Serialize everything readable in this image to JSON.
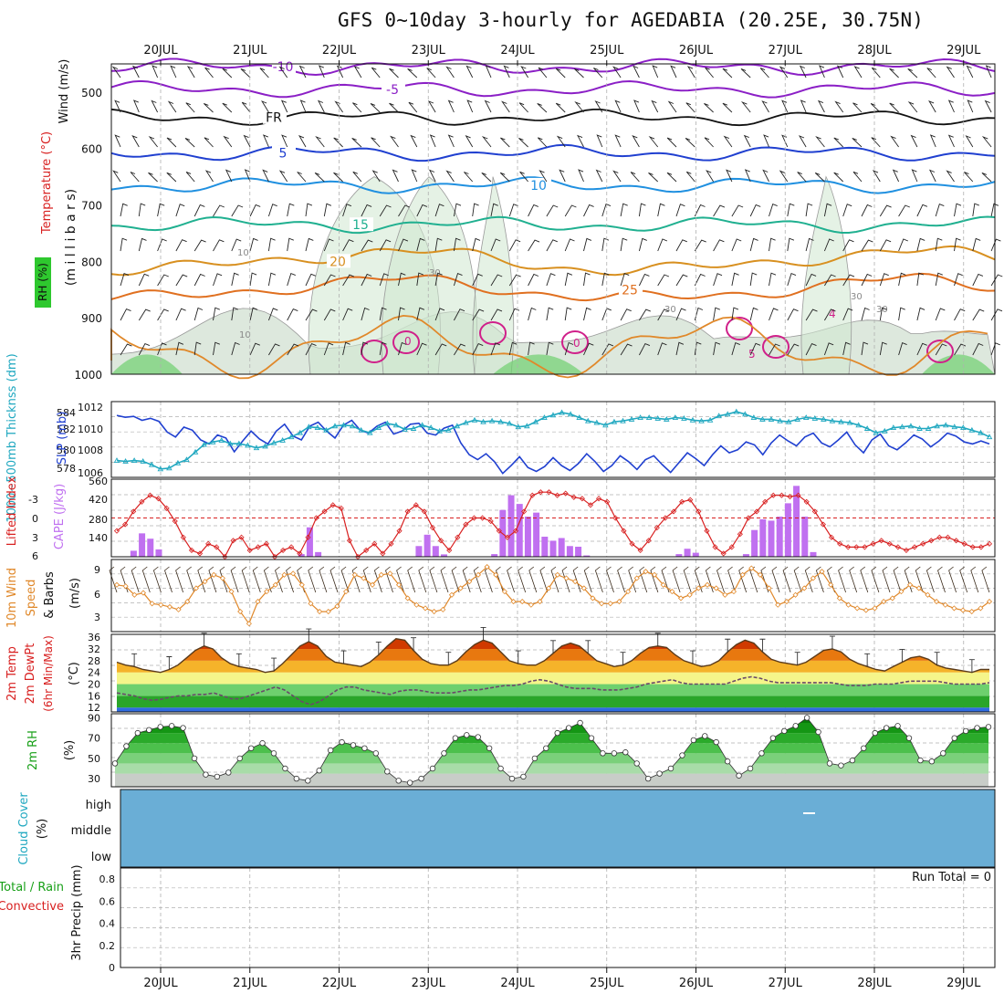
{
  "title": "GFS 0~10day 3-hourly for AGEDABIA (20.25E, 30.75N)",
  "days": [
    "20JUL",
    "21JUL",
    "22JUL",
    "23JUL",
    "24JUL",
    "25JUL",
    "26JUL",
    "27JUL",
    "28JUL",
    "29JUL"
  ],
  "colors": {
    "grid": "#b0b0b0",
    "purple": "#8b1fc6",
    "blue": "#2040d0",
    "cyan": "#20a8c0",
    "orange": "#e0882a",
    "red": "#d82020",
    "green": "#18a018",
    "cloud": "#6aaed6"
  },
  "chart_data": [
    {
      "type": "contour",
      "panel": "upper-air",
      "ylabel_lines": [
        "Wind (m/s)",
        "Temperature (°C)",
        "RH (%)",
        "(millibars)"
      ],
      "ylabel_wind": "Wind (m/s)",
      "ylabel_temp": "Temperature (°C)",
      "ylabel_rh": "RH (%)",
      "ylabel_pressure": "(m i l l i b a r s)",
      "yticks": [
        500,
        600,
        700,
        800,
        900,
        1000
      ],
      "ylim": [
        450,
        1000
      ],
      "isotherms": [
        {
          "label": "-10",
          "level": 455,
          "color": "#8b1fc6"
        },
        {
          "label": "-5",
          "level": 495,
          "color": "#8b1fc6"
        },
        {
          "label": "FR",
          "level": 545,
          "color": "#111111"
        },
        {
          "label": "5",
          "level": 608,
          "color": "#2040d0"
        },
        {
          "label": "10",
          "level": 665,
          "color": "#2090e0"
        },
        {
          "label": "15",
          "level": 735,
          "color": "#20b090"
        },
        {
          "label": "20",
          "level": 800,
          "color": "#d89020"
        },
        {
          "label": "25",
          "level": 850,
          "color": "#e07020"
        }
      ],
      "rh_labels": [
        "10",
        "30",
        "30",
        "30",
        "10",
        "30"
      ],
      "inversion_labels": [
        "0",
        "0",
        "5",
        "4"
      ]
    },
    {
      "type": "line",
      "panel": "slp-thickness",
      "ylabel_left": "1000~500mb Thicknss (dm)",
      "ylabel_right": "SLP (mb)",
      "thickness_ticks": [
        "584",
        "582",
        "580",
        "578"
      ],
      "slp_ticks": [
        "1012",
        "1010",
        "1008",
        "1006"
      ],
      "series": [
        {
          "name": "SLP (mb)",
          "color": "#2040d0",
          "values": [
            1012.1,
            1011.9,
            1012.0,
            1011.6,
            1011.8,
            1011.5,
            1010.4,
            1009.9,
            1010.9,
            1010.6,
            1009.6,
            1009.2,
            1010.1,
            1009.8,
            1008.4,
            1009.5,
            1010.5,
            1009.7,
            1009.2,
            1010.5,
            1011.2,
            1010.0,
            1009.6,
            1011.0,
            1011.4,
            1010.5,
            1009.8,
            1011.1,
            1011.6,
            1010.6,
            1010.3,
            1011.0,
            1011.4,
            1010.2,
            1010.5,
            1011.2,
            1011.3,
            1010.3,
            1010.1,
            1010.8,
            1011.1,
            1009.3,
            1008.1,
            1007.6,
            1008.2,
            1007.4,
            1006.2,
            1007.0,
            1007.9,
            1006.8,
            1006.4,
            1006.9,
            1007.8,
            1007.0,
            1006.5,
            1007.2,
            1008.2,
            1007.4,
            1006.4,
            1007.0,
            1008.0,
            1007.4,
            1006.6,
            1007.6,
            1008.0,
            1007.1,
            1006.3,
            1007.3,
            1008.3,
            1007.7,
            1007.0,
            1008.1,
            1009.0,
            1008.3,
            1008.6,
            1009.4,
            1009.1,
            1008.1,
            1009.3,
            1010.1,
            1009.5,
            1009.0,
            1009.9,
            1010.3,
            1009.3,
            1008.9,
            1009.6,
            1010.4,
            1009.1,
            1008.3,
            1009.6,
            1010.2,
            1009.0,
            1008.6,
            1009.3,
            1010.1,
            1009.7,
            1008.9,
            1009.5,
            1010.3,
            1010.0,
            1009.4,
            1009.2,
            1009.5,
            1009.2
          ]
        },
        {
          "name": "1000~500mb Thicknss (dm)",
          "color": "#20a8c0",
          "values": [
            578.5,
            578.4,
            578.5,
            578.4,
            578.0,
            577.5,
            577.6,
            578.2,
            578.6,
            579.5,
            580.4,
            580.7,
            580.9,
            580.5,
            580.5,
            580.3,
            580.0,
            580.2,
            580.6,
            580.9,
            581.3,
            581.8,
            582.5,
            582.4,
            582.1,
            582.6,
            582.7,
            582.6,
            582.1,
            581.8,
            582.4,
            582.9,
            582.7,
            582.2,
            582.3,
            582.7,
            582.4,
            582.0,
            582.1,
            582.6,
            583.0,
            583.3,
            583.1,
            583.2,
            583.1,
            582.9,
            582.5,
            582.6,
            583.1,
            583.6,
            583.9,
            584.2,
            584.0,
            583.6,
            583.2,
            583.0,
            582.7,
            583.1,
            583.2,
            583.4,
            583.6,
            583.6,
            583.5,
            583.4,
            583.6,
            583.5,
            583.3,
            583.2,
            583.3,
            583.8,
            584.0,
            584.3,
            584.0,
            583.6,
            583.4,
            583.4,
            583.2,
            583.1,
            583.4,
            583.6,
            583.5,
            583.4,
            583.2,
            583.1,
            583.0,
            582.7,
            582.3,
            581.8,
            582.0,
            582.4,
            582.5,
            582.6,
            582.3,
            582.3,
            582.6,
            582.7,
            582.5,
            582.4,
            582.1,
            581.8,
            581.3
          ]
        }
      ]
    },
    {
      "type": "bar-line",
      "panel": "lifted-index-cape",
      "ylabel_left": "Lifted Index",
      "ylabel_right": "CAPE (J/kg)",
      "li_ticks": [
        "-3",
        "0",
        "3",
        "6"
      ],
      "cape_ticks": [
        "560",
        "420",
        "280",
        "140"
      ],
      "series": [
        {
          "name": "Lifted Index",
          "color": "#d82020",
          "values": [
            2,
            1,
            -1,
            -2.5,
            -3.5,
            -3,
            -1.5,
            0.5,
            3,
            5,
            5.5,
            4,
            4.5,
            6,
            3.5,
            3,
            5,
            4.5,
            4,
            6,
            5,
            4.5,
            5.5,
            3,
            0,
            -1,
            -2,
            -1.5,
            3.5,
            6,
            5,
            4,
            5.5,
            4,
            2,
            -1,
            -2,
            -1,
            1.5,
            3.5,
            5,
            3,
            1,
            0,
            0,
            0.5,
            2,
            3,
            2,
            -1,
            -3.5,
            -4,
            -4,
            -3.5,
            -3.8,
            -3.2,
            -3,
            -2,
            -3,
            -2.5,
            0,
            2,
            4,
            5,
            3.5,
            1.5,
            0,
            -1,
            -2.5,
            -2.8,
            -1,
            2,
            4.5,
            5.5,
            4.5,
            2.5,
            0,
            -1,
            -2.5,
            -3.5,
            -3.5,
            -3.3,
            -3.5,
            -2.5,
            -1,
            1,
            3,
            4,
            4.5,
            4.5,
            4.5,
            4,
            3.5,
            4,
            4.5,
            5,
            4.5,
            4,
            3.5,
            3,
            3,
            3.5,
            4,
            4.5,
            4.5,
            4
          ]
        },
        {
          "name": "CAPE (J/kg)",
          "color": "#c070f0",
          "values": [
            0,
            0,
            45,
            175,
            135,
            55,
            0,
            0,
            0,
            0,
            0,
            0,
            0,
            0,
            0,
            0,
            0,
            0,
            0,
            0,
            0,
            0,
            20,
            220,
            35,
            0,
            0,
            0,
            0,
            0,
            0,
            0,
            0,
            0,
            0,
            0,
            80,
            165,
            80,
            18,
            0,
            0,
            0,
            0,
            0,
            20,
            350,
            460,
            395,
            300,
            330,
            150,
            120,
            140,
            80,
            75,
            10,
            0,
            0,
            0,
            0,
            0,
            0,
            0,
            0,
            0,
            0,
            20,
            60,
            30,
            0,
            0,
            0,
            0,
            0,
            20,
            200,
            280,
            270,
            300,
            400,
            530,
            300,
            35,
            0,
            0,
            0,
            0,
            0,
            0,
            0,
            0,
            0,
            0,
            0,
            0,
            0,
            0,
            0,
            0,
            0,
            0,
            0,
            0,
            0
          ]
        }
      ]
    },
    {
      "type": "line",
      "panel": "10m-wind",
      "ylabel": "10m Wind Speed & Barbs (m/s)",
      "yticks": [
        "9",
        "6",
        "3"
      ],
      "series": [
        {
          "name": "10m Wind Speed",
          "color": "#e0882a",
          "values": [
            7,
            6.8,
            5.5,
            5.8,
            4.2,
            4,
            3.7,
            3.3,
            4.5,
            6.5,
            7.5,
            8.5,
            8,
            6,
            3,
            1.2,
            4.5,
            6,
            7,
            8.5,
            8.7,
            7,
            4.2,
            3,
            3,
            3.8,
            6,
            8.5,
            8,
            7,
            8.5,
            8.7,
            7,
            5,
            4,
            3.5,
            3,
            3.3,
            5.5,
            6.5,
            7.5,
            8.5,
            9.7,
            8.5,
            6,
            4.5,
            4.5,
            4,
            4.5,
            6.5,
            8.5,
            8,
            7.5,
            6.5,
            5,
            4.2,
            4.2,
            4.5,
            6,
            8,
            9,
            8.5,
            7,
            6,
            5,
            5.5,
            6.5,
            7,
            6.5,
            5.5,
            6,
            8.5,
            9.5,
            8.5,
            6.5,
            4,
            4.5,
            5.5,
            6.5,
            8,
            9,
            7,
            5,
            4,
            3.5,
            3.2,
            3.5,
            4.5,
            5,
            6,
            7,
            6.5,
            5.5,
            4.5,
            4,
            3.5,
            3.2,
            3,
            3.5,
            4.5
          ]
        }
      ]
    },
    {
      "type": "area",
      "panel": "2m-temp",
      "ylabel": "2m Temp 2m DewPt (6hr Min/Max) (°C)",
      "yticks": [
        "36",
        "32",
        "28",
        "24",
        "20",
        "16",
        "12"
      ],
      "series": [
        {
          "name": "2m Temp",
          "color": "#5a3a1a",
          "values": [
            27.5,
            26.5,
            26,
            25,
            24.5,
            24,
            25,
            26.5,
            29,
            31.5,
            33,
            32,
            29,
            27,
            26,
            25.5,
            25,
            24,
            24.5,
            27,
            30,
            33,
            34.5,
            33,
            29.5,
            27.5,
            27,
            26.5,
            26,
            27.5,
            30,
            33,
            35.5,
            35,
            31.5,
            28.5,
            27,
            26.5,
            26.5,
            28,
            31,
            33.5,
            35,
            34,
            31,
            28,
            27,
            26.5,
            26.5,
            28,
            30.5,
            33,
            34,
            33,
            30.5,
            28,
            27,
            26,
            26.5,
            28,
            30.5,
            32.5,
            33,
            32.5,
            30,
            28,
            27,
            26,
            26.5,
            28,
            31,
            33.5,
            35,
            34,
            31,
            28.5,
            27.5,
            27,
            26.5,
            27.5,
            29.5,
            31.5,
            32,
            31,
            28.5,
            27,
            26,
            25,
            24.5,
            26,
            27.5,
            29,
            29.5,
            28.5,
            26.5,
            25.5,
            25,
            24.5,
            24,
            25,
            25
          ]
        },
        {
          "name": "2m DewPt",
          "color": "#6a4a6a",
          "values": [
            17,
            16.5,
            16,
            15,
            14.5,
            14.8,
            15.5,
            16,
            16,
            16.5,
            16.5,
            17,
            16,
            15,
            15,
            16,
            17,
            18,
            19,
            18,
            16,
            14,
            13,
            14,
            16,
            18,
            19,
            19,
            18,
            17.5,
            17,
            16.5,
            17.5,
            18,
            18,
            17.5,
            17,
            17,
            17,
            17.5,
            18,
            18,
            18.5,
            19,
            19.5,
            19.5,
            20,
            21,
            21.5,
            21,
            20,
            19,
            18.5,
            18.5,
            18.5,
            18,
            18,
            18,
            18.5,
            19,
            20,
            20.5,
            21,
            21.5,
            20.5,
            20,
            20,
            20,
            20,
            20,
            21,
            22,
            22.5,
            22,
            21,
            20.5,
            20.5,
            20.5,
            20.5,
            20.5,
            20.5,
            20.5,
            20,
            19.5,
            19.5,
            19.5,
            20,
            20,
            20,
            20.5,
            21,
            21,
            21,
            21,
            20.5,
            20,
            20,
            20,
            20,
            20.5
          ]
        }
      ]
    },
    {
      "type": "area",
      "panel": "2m-rh",
      "ylabel": "2m RH (%)",
      "yticks": [
        "90",
        "70",
        "50",
        "30"
      ],
      "series": [
        {
          "name": "2m RH",
          "color": "#18a018",
          "values": [
            45,
            62,
            75,
            78,
            81,
            82,
            80,
            50,
            34,
            32,
            36,
            50,
            60,
            65,
            55,
            40,
            30,
            28,
            38,
            58,
            66,
            63,
            60,
            55,
            37,
            28,
            26,
            30,
            40,
            55,
            70,
            73,
            71,
            60,
            40,
            30,
            32,
            50,
            60,
            75,
            80,
            85,
            70,
            55,
            55,
            56,
            45,
            30,
            35,
            40,
            53,
            68,
            72,
            66,
            47,
            33,
            40,
            55,
            70,
            77,
            82,
            90,
            76,
            45,
            43,
            48,
            60,
            75,
            80,
            82,
            70,
            48,
            47,
            55,
            70,
            77,
            80,
            81
          ]
        }
      ]
    },
    {
      "type": "heatmap",
      "panel": "cloud-cover",
      "ylabel": "Cloud Cover (%)",
      "levels": [
        "high",
        "middle",
        "low"
      ],
      "value": 0
    },
    {
      "type": "bar",
      "panel": "3hr-precip",
      "ylabel": "3hr Precip (mm)",
      "legend": [
        "Total / Rain",
        "Convective"
      ],
      "run_total_label": "Run Total = 0",
      "yticks": [
        "0.8",
        "0.6",
        "0.4",
        "0.2",
        "0"
      ],
      "ylim": [
        0,
        0.9
      ],
      "values": []
    }
  ]
}
